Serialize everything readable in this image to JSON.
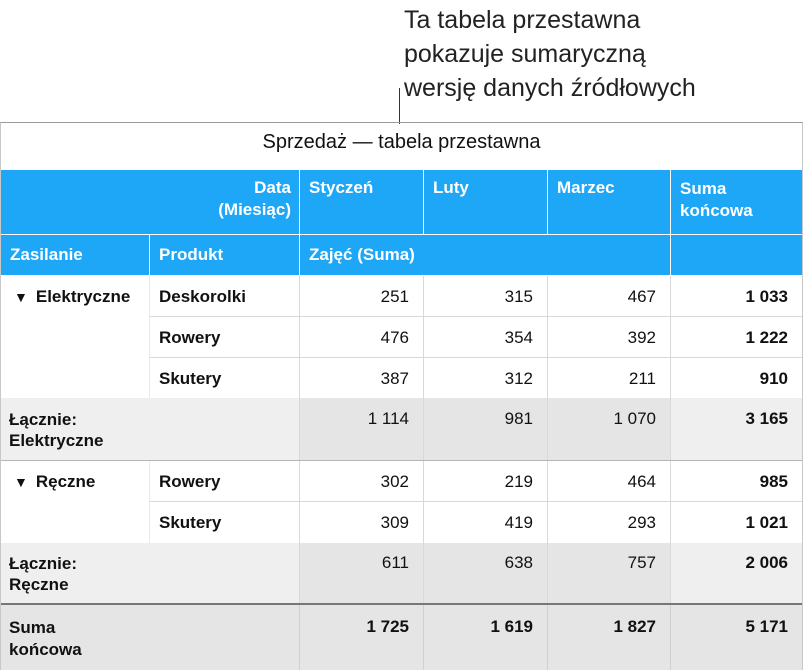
{
  "callout": {
    "line1": "Ta tabela przestawna",
    "line2": "pokazuje sumaryczną",
    "line3": "wersję danych źródłowych"
  },
  "table": {
    "title": "Sprzedaż — tabela przestawna",
    "date_header_line1": "Data",
    "date_header_line2": "(Miesiąc)",
    "col_styczen": "Styczeń",
    "col_luty": "Luty",
    "col_marzec": "Marzec",
    "col_suma_line1": "Suma",
    "col_suma_line2": "końcowa",
    "row_header_zasilanie": "Zasilanie",
    "row_header_produkt": "Produkt",
    "value_field": "Zajęć (Suma)",
    "group_elektryczne": {
      "label": "Elektryczne",
      "rows": [
        {
          "product": "Deskorolki",
          "sty": "251",
          "lut": "315",
          "mar": "467",
          "total": "1 033"
        },
        {
          "product": "Rowery",
          "sty": "476",
          "lut": "354",
          "mar": "392",
          "total": "1 222"
        },
        {
          "product": "Skutery",
          "sty": "387",
          "lut": "312",
          "mar": "211",
          "total": "910"
        }
      ],
      "subtotal_line1": "Łącznie:",
      "subtotal_line2": "Elektryczne",
      "subtotal": {
        "sty": "1 114",
        "lut": "981",
        "mar": "1 070",
        "total": "3 165"
      }
    },
    "group_reczne": {
      "label": "Ręczne",
      "rows": [
        {
          "product": "Rowery",
          "sty": "302",
          "lut": "219",
          "mar": "464",
          "total": "985"
        },
        {
          "product": "Skutery",
          "sty": "309",
          "lut": "419",
          "mar": "293",
          "total": "1 021"
        }
      ],
      "subtotal_line1": "Łącznie:",
      "subtotal_line2": "Ręczne",
      "subtotal": {
        "sty": "611",
        "lut": "638",
        "mar": "757",
        "total": "2 006"
      }
    },
    "grand_line1": "Suma",
    "grand_line2": "końcowa",
    "grand": {
      "sty": "1 725",
      "lut": "1 619",
      "mar": "1 827",
      "total": "5 171"
    }
  }
}
